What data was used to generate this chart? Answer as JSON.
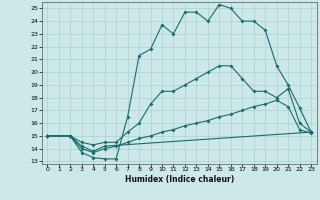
{
  "xlabel": "Humidex (Indice chaleur)",
  "bg_color": "#cce8e8",
  "grid_color": "#aad0d0",
  "line_color": "#1a6b6b",
  "xlim": [
    -0.5,
    23.5
  ],
  "ylim": [
    12.8,
    25.5
  ],
  "xticks": [
    0,
    1,
    2,
    3,
    4,
    5,
    6,
    7,
    8,
    9,
    10,
    11,
    12,
    13,
    14,
    15,
    16,
    17,
    18,
    19,
    20,
    21,
    22,
    23
  ],
  "yticks": [
    13,
    14,
    15,
    16,
    17,
    18,
    19,
    20,
    21,
    22,
    23,
    24,
    25
  ],
  "curve1_x": [
    0,
    2,
    3,
    4,
    5,
    6,
    7,
    8,
    9,
    10,
    11,
    12,
    13,
    14,
    15,
    16,
    17,
    18,
    19,
    20,
    21,
    22,
    23
  ],
  "curve1_y": [
    15,
    15,
    13.7,
    13.3,
    13.2,
    13.2,
    16.5,
    21.3,
    21.8,
    23.7,
    23.0,
    24.7,
    24.7,
    24.0,
    25.3,
    25.0,
    24.0,
    24.0,
    23.3,
    20.5,
    19.0,
    17.2,
    15.3
  ],
  "curve2_x": [
    0,
    2,
    3,
    4,
    5,
    6,
    7,
    8,
    9,
    10,
    11,
    12,
    13,
    14,
    15,
    16,
    17,
    18,
    19,
    20,
    21,
    22,
    23
  ],
  "curve2_y": [
    15,
    15,
    14.5,
    14.3,
    14.5,
    14.5,
    15.3,
    16.0,
    17.5,
    18.5,
    18.5,
    19.0,
    19.5,
    20.0,
    20.5,
    20.5,
    19.5,
    18.5,
    18.5,
    18.0,
    18.7,
    16.0,
    15.3
  ],
  "curve3_x": [
    0,
    2,
    3,
    4,
    5,
    23
  ],
  "curve3_y": [
    15,
    15,
    14.2,
    13.8,
    14.2,
    15.3
  ],
  "curve4_x": [
    0,
    2,
    3,
    4,
    5,
    6,
    7,
    8,
    9,
    10,
    11,
    12,
    13,
    14,
    15,
    16,
    17,
    18,
    19,
    20,
    21,
    22,
    23
  ],
  "curve4_y": [
    15,
    15,
    14.0,
    13.7,
    14.0,
    14.2,
    14.5,
    14.8,
    15.0,
    15.3,
    15.5,
    15.8,
    16.0,
    16.2,
    16.5,
    16.7,
    17.0,
    17.3,
    17.5,
    17.8,
    17.3,
    15.5,
    15.2
  ]
}
